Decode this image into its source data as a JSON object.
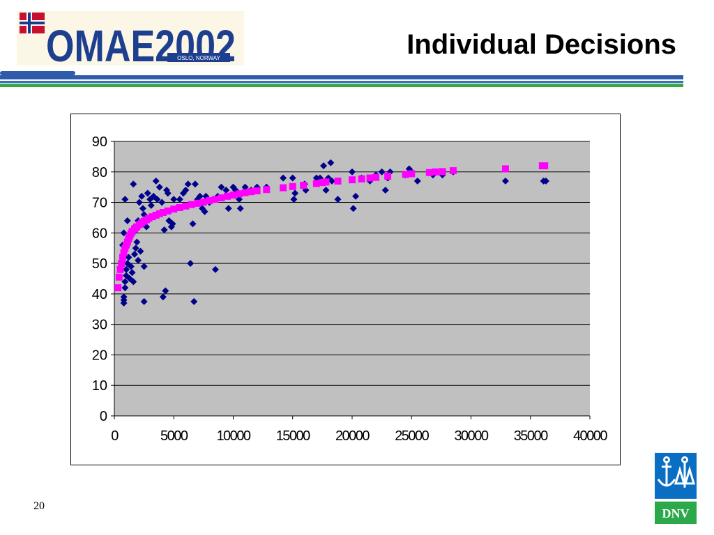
{
  "header": {
    "title": "Individual Decisions",
    "logo_text": "OMAE2002",
    "logo_subtext": "OSLO, NORWAY"
  },
  "footer": {
    "page_number": "20",
    "dnv_text": "DNV"
  },
  "colors": {
    "bar_blue": "#2e5caa",
    "bar_green": "#3aa64a",
    "plot_bg": "#c0c0c0",
    "series_observed": "#00008b",
    "series_fitted": "#ff00ff",
    "dnv_blue": "#0a6fc2",
    "dnv_green": "#2aa84a"
  },
  "chart_data": {
    "type": "scatter",
    "xlim": [
      0,
      40000
    ],
    "ylim": [
      0,
      90
    ],
    "xticks": [
      0,
      5000,
      10000,
      15000,
      20000,
      25000,
      30000,
      35000,
      40000
    ],
    "yticks": [
      0,
      10,
      20,
      30,
      40,
      50,
      60,
      70,
      80,
      90
    ],
    "grid": "horizontal",
    "legend": "none",
    "series": [
      {
        "marker": "diamond",
        "points": [
          [
            800,
            37
          ],
          [
            800,
            38
          ],
          [
            800,
            39
          ],
          [
            900,
            42
          ],
          [
            900,
            44
          ],
          [
            1000,
            46
          ],
          [
            700,
            56
          ],
          [
            800,
            60
          ],
          [
            900,
            71
          ],
          [
            1000,
            48
          ],
          [
            1100,
            50
          ],
          [
            1200,
            52
          ],
          [
            1100,
            64
          ],
          [
            1300,
            45
          ],
          [
            1400,
            49
          ],
          [
            1500,
            47
          ],
          [
            1600,
            44
          ],
          [
            1700,
            53
          ],
          [
            1800,
            55
          ],
          [
            1900,
            57
          ],
          [
            1700,
            62
          ],
          [
            1600,
            76
          ],
          [
            1800,
            61
          ],
          [
            2000,
            64
          ],
          [
            2200,
            54
          ],
          [
            2000,
            51
          ],
          [
            2100,
            70
          ],
          [
            2300,
            72
          ],
          [
            2400,
            68
          ],
          [
            2500,
            66
          ],
          [
            2500,
            49
          ],
          [
            2500,
            37.5
          ],
          [
            2700,
            62
          ],
          [
            2800,
            73
          ],
          [
            3000,
            71
          ],
          [
            3100,
            69
          ],
          [
            3300,
            72
          ],
          [
            3500,
            77
          ],
          [
            3600,
            71
          ],
          [
            3800,
            75
          ],
          [
            4000,
            70
          ],
          [
            4100,
            39
          ],
          [
            4300,
            41
          ],
          [
            4200,
            61
          ],
          [
            4400,
            74
          ],
          [
            4500,
            73
          ],
          [
            4600,
            64
          ],
          [
            4800,
            62
          ],
          [
            4900,
            63
          ],
          [
            5000,
            71
          ],
          [
            5200,
            68
          ],
          [
            5500,
            71
          ],
          [
            5800,
            73
          ],
          [
            6000,
            74
          ],
          [
            6200,
            76
          ],
          [
            6400,
            50
          ],
          [
            6600,
            63
          ],
          [
            6700,
            37.5
          ],
          [
            6800,
            76
          ],
          [
            7000,
            71
          ],
          [
            7200,
            72
          ],
          [
            7400,
            68
          ],
          [
            7600,
            67
          ],
          [
            7700,
            72
          ],
          [
            8000,
            70
          ],
          [
            8500,
            48
          ],
          [
            8700,
            72
          ],
          [
            9000,
            75
          ],
          [
            9400,
            74
          ],
          [
            9600,
            68
          ],
          [
            10000,
            75
          ],
          [
            10200,
            74
          ],
          [
            10500,
            71
          ],
          [
            10600,
            68
          ],
          [
            11000,
            75
          ],
          [
            11500,
            74
          ],
          [
            12000,
            75
          ],
          [
            12800,
            75
          ],
          [
            14200,
            78
          ],
          [
            15000,
            78
          ],
          [
            15100,
            71
          ],
          [
            15200,
            73
          ],
          [
            16000,
            76
          ],
          [
            16100,
            74
          ],
          [
            17000,
            78
          ],
          [
            17300,
            78
          ],
          [
            17600,
            82
          ],
          [
            17800,
            74
          ],
          [
            18000,
            78
          ],
          [
            18200,
            83
          ],
          [
            18300,
            77
          ],
          [
            18800,
            71
          ],
          [
            20000,
            80
          ],
          [
            20100,
            68
          ],
          [
            20300,
            72
          ],
          [
            20800,
            78
          ],
          [
            21500,
            77
          ],
          [
            22000,
            79
          ],
          [
            22500,
            80
          ],
          [
            22800,
            74
          ],
          [
            23000,
            78
          ],
          [
            23200,
            80
          ],
          [
            24500,
            79
          ],
          [
            24800,
            81
          ],
          [
            25000,
            80
          ],
          [
            25500,
            77
          ],
          [
            26800,
            79
          ],
          [
            27600,
            79
          ],
          [
            28500,
            80
          ],
          [
            32900,
            77
          ],
          [
            36100,
            77
          ],
          [
            36300,
            77
          ]
        ]
      },
      {
        "marker": "square",
        "points": [
          [
            300,
            42
          ],
          [
            400,
            45.5
          ],
          [
            500,
            48
          ],
          [
            600,
            50
          ],
          [
            700,
            52
          ],
          [
            800,
            53.5
          ],
          [
            900,
            55
          ],
          [
            1000,
            56
          ],
          [
            1100,
            57
          ],
          [
            1200,
            58
          ],
          [
            1300,
            59
          ],
          [
            1400,
            59.8
          ],
          [
            1500,
            60.5
          ],
          [
            1700,
            61.3
          ],
          [
            1900,
            62
          ],
          [
            2100,
            62.7
          ],
          [
            2300,
            63.3
          ],
          [
            2500,
            63.8
          ],
          [
            2700,
            64.3
          ],
          [
            2900,
            64.8
          ],
          [
            3200,
            65.3
          ],
          [
            3500,
            65.8
          ],
          [
            3800,
            66.3
          ],
          [
            4100,
            66.7
          ],
          [
            4500,
            67.2
          ],
          [
            5000,
            67.8
          ],
          [
            5500,
            68.3
          ],
          [
            6000,
            68.8
          ],
          [
            6500,
            69.3
          ],
          [
            7000,
            69.7
          ],
          [
            7500,
            70.1
          ],
          [
            8000,
            70.6
          ],
          [
            8500,
            71
          ],
          [
            9000,
            71.5
          ],
          [
            9500,
            72
          ],
          [
            10000,
            72.4
          ],
          [
            10500,
            72.8
          ],
          [
            11000,
            73.2
          ],
          [
            11500,
            73.5
          ],
          [
            12000,
            73.8
          ],
          [
            12800,
            74.2
          ],
          [
            14200,
            74.8
          ],
          [
            15000,
            75.2
          ],
          [
            15900,
            75.6
          ],
          [
            17000,
            76.2
          ],
          [
            17500,
            76.5
          ],
          [
            17800,
            76.7
          ],
          [
            18800,
            77
          ],
          [
            20000,
            77.4
          ],
          [
            20800,
            77.7
          ],
          [
            21500,
            78
          ],
          [
            22000,
            78.2
          ],
          [
            23000,
            78.6
          ],
          [
            24500,
            79.2
          ],
          [
            25000,
            79.4
          ],
          [
            26500,
            79.8
          ],
          [
            27000,
            80
          ],
          [
            27600,
            80.1
          ],
          [
            28500,
            80.4
          ],
          [
            32900,
            81
          ],
          [
            36000,
            82
          ],
          [
            36200,
            82
          ]
        ]
      }
    ]
  }
}
